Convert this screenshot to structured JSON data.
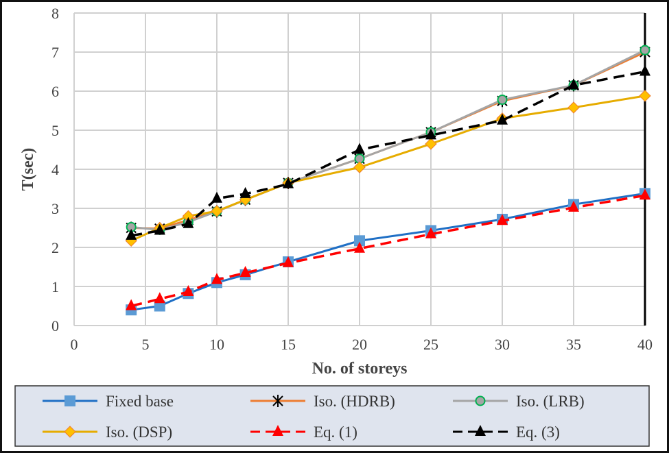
{
  "chart_data": {
    "type": "line",
    "title": "",
    "xlabel": "No. of storeys",
    "ylabel": "T(sec)",
    "xlim": [
      0,
      40
    ],
    "ylim": [
      0,
      8
    ],
    "xticks": [
      0,
      5,
      10,
      15,
      20,
      25,
      30,
      35,
      40
    ],
    "yticks": [
      0,
      1,
      2,
      3,
      4,
      5,
      6,
      7,
      8
    ],
    "grid": true,
    "legend_position": "bottom",
    "x": [
      4,
      6,
      8,
      10,
      12,
      15,
      20,
      25,
      30,
      35,
      40
    ],
    "series": [
      {
        "name": "Fixed base",
        "color": "#1f6fc5",
        "marker": "square",
        "marker_color": "#5b9bd5",
        "dash": false,
        "values": [
          0.4,
          0.5,
          0.82,
          1.1,
          1.3,
          1.63,
          2.17,
          2.43,
          2.72,
          3.1,
          3.38
        ]
      },
      {
        "name": "Iso. (HDRB)",
        "color": "#ed7d31",
        "marker": "star",
        "marker_color": "#000000",
        "dash": false,
        "values": [
          2.5,
          2.48,
          2.7,
          2.92,
          3.22,
          3.65,
          4.27,
          4.95,
          5.75,
          6.15,
          7.0
        ]
      },
      {
        "name": "Iso. (LRB)",
        "color": "#a5a5a5",
        "marker": "circle",
        "marker_color": "#a5a5a5",
        "dash": false,
        "values": [
          2.52,
          2.45,
          2.65,
          2.92,
          3.22,
          3.65,
          4.27,
          4.95,
          5.78,
          6.15,
          7.05
        ]
      },
      {
        "name": "Iso. (DSP)",
        "color": "#e6ac00",
        "marker": "diamond",
        "marker_color": "#ffc000",
        "dash": false,
        "values": [
          2.17,
          2.5,
          2.8,
          2.93,
          3.22,
          3.65,
          4.05,
          4.65,
          5.3,
          5.58,
          5.88
        ]
      },
      {
        "name": "Eq. (1)",
        "color": "#ff0000",
        "marker": "triangle",
        "marker_color": "#ff0000",
        "dash": true,
        "values": [
          0.5,
          0.68,
          0.86,
          1.17,
          1.35,
          1.6,
          1.97,
          2.34,
          2.68,
          3.02,
          3.33
        ]
      },
      {
        "name": "Eq. (3)",
        "color": "#000000",
        "marker": "triangle",
        "marker_color": "#000000",
        "dash": true,
        "values": [
          2.3,
          2.43,
          2.6,
          3.25,
          3.37,
          3.62,
          4.5,
          4.87,
          5.25,
          6.15,
          6.5
        ]
      }
    ]
  }
}
